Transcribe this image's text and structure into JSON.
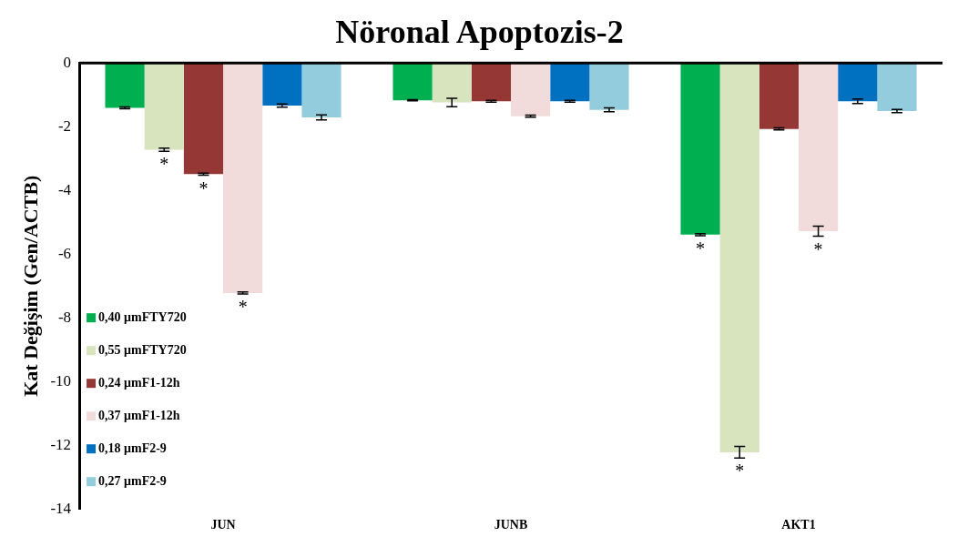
{
  "chart_data": {
    "type": "bar",
    "title": "Nöronal Apoptozis-2",
    "ylabel": "Kat Değişim (Gen/ACTB)",
    "categories": [
      "JUN",
      "JUNB",
      "AKT1"
    ],
    "series": [
      {
        "name": "0,40 μmFTY720",
        "color": "#00b050",
        "values": [
          -1.41,
          -1.17,
          -5.39
        ],
        "errors": [
          0.03,
          0.02,
          0.03
        ],
        "value_labels": [
          null,
          null,
          "*"
        ]
      },
      {
        "name": "0,55 μmFTY720",
        "color": "#d7e4bd",
        "values": [
          -2.72,
          -1.24,
          -12.22
        ],
        "errors": [
          0.05,
          0.13,
          0.18
        ],
        "value_labels": [
          "*",
          null,
          "*"
        ]
      },
      {
        "name": "0,24 μmF1-12h",
        "color": "#953735",
        "values": [
          -3.49,
          -1.2,
          -2.07
        ],
        "errors": [
          0.03,
          0.03,
          0.03
        ],
        "value_labels": [
          "*",
          null,
          null
        ]
      },
      {
        "name": "0,37 μmF1-12h",
        "color": "#f2dcdb",
        "values": [
          -7.22,
          -1.67,
          -5.28
        ],
        "errors": [
          0.03,
          0.03,
          0.16
        ],
        "value_labels": [
          "*",
          null,
          "*"
        ]
      },
      {
        "name": "0,18 μmF2-9",
        "color": "#0070c0",
        "values": [
          -1.34,
          -1.2,
          -1.2
        ],
        "errors": [
          0.05,
          0.03,
          0.07
        ],
        "value_labels": [
          null,
          null,
          null
        ]
      },
      {
        "name": "0,27 μmF2-9",
        "color": "#93cddd",
        "values": [
          -1.71,
          -1.47,
          -1.51
        ],
        "errors": [
          0.08,
          0.06,
          0.05
        ],
        "value_labels": [
          null,
          null,
          null
        ]
      }
    ],
    "ylim": [
      -14,
      0
    ],
    "yticks": [
      -14,
      -12,
      -10,
      -8,
      -6,
      -4,
      -2,
      0
    ],
    "grid": false,
    "legend": "bottom left"
  }
}
